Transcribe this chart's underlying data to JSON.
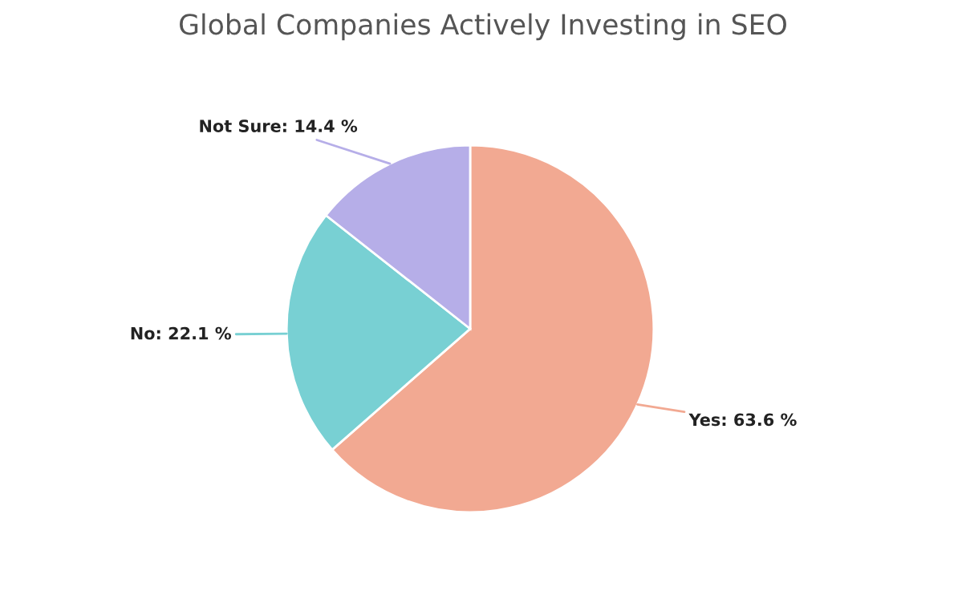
{
  "chart_data": {
    "type": "pie",
    "title": "Global Companies Actively Investing in SEO",
    "categories": [
      "Yes",
      "No",
      "Not Sure"
    ],
    "values": [
      63.6,
      22.1,
      14.4
    ],
    "value_labels": [
      "63.6 %",
      "22.1 %",
      "14.4 %"
    ],
    "colors": [
      "#f2a992",
      "#78d0d3",
      "#b6aee8"
    ],
    "legend": false
  }
}
